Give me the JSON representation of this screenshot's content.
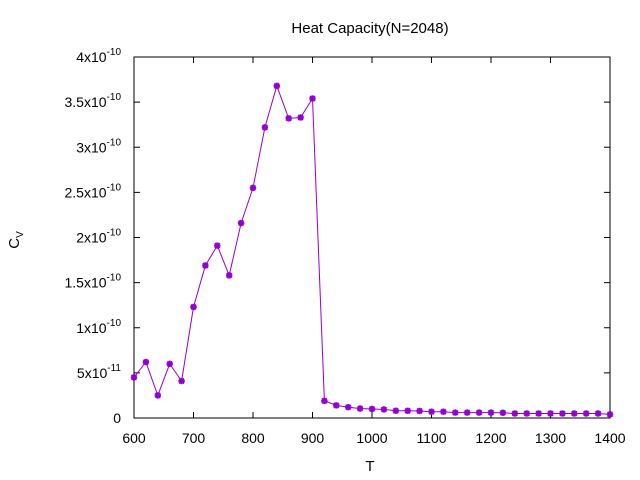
{
  "chart_data": {
    "type": "line",
    "title": "Heat Capacity(N=2048)",
    "xlabel": "T",
    "ylabel": "C",
    "ylabel_sub": "V",
    "xlim": [
      600,
      1400
    ],
    "ylim": [
      0,
      4e-10
    ],
    "x_ticks": [
      600,
      700,
      800,
      900,
      1000,
      1100,
      1200,
      1300,
      1400
    ],
    "x_tick_labels": [
      "600",
      "700",
      "800",
      "900",
      "1000",
      "1100",
      "1200",
      "1300",
      "1400"
    ],
    "y_ticks": [
      {
        "value": 0,
        "mantissa": "0",
        "exp": ""
      },
      {
        "value": 5e-11,
        "mantissa": "5x10",
        "exp": "-11"
      },
      {
        "value": 1e-10,
        "mantissa": "1x10",
        "exp": "-10"
      },
      {
        "value": 1.5e-10,
        "mantissa": "1.5x10",
        "exp": "-10"
      },
      {
        "value": 2e-10,
        "mantissa": "2x10",
        "exp": "-10"
      },
      {
        "value": 2.5e-10,
        "mantissa": "2.5x10",
        "exp": "-10"
      },
      {
        "value": 3e-10,
        "mantissa": "3x10",
        "exp": "-10"
      },
      {
        "value": 3.5e-10,
        "mantissa": "3.5x10",
        "exp": "-10"
      },
      {
        "value": 4e-10,
        "mantissa": "4x10",
        "exp": "-10"
      }
    ],
    "grid": false,
    "legend": "none",
    "series": [
      {
        "color": "#9400d3",
        "marker": "asterisk",
        "x": [
          600,
          620,
          640,
          660,
          680,
          700,
          720,
          740,
          760,
          780,
          800,
          820,
          840,
          860,
          880,
          900,
          920,
          940,
          960,
          980,
          1000,
          1020,
          1040,
          1060,
          1080,
          1100,
          1120,
          1140,
          1160,
          1180,
          1200,
          1220,
          1240,
          1260,
          1280,
          1300,
          1320,
          1340,
          1360,
          1380,
          1400
        ],
        "y": [
          4.5e-11,
          6.2e-11,
          2.5e-11,
          6e-11,
          4.1e-11,
          1.23e-10,
          1.69e-10,
          1.91e-10,
          1.58e-10,
          2.16e-10,
          2.55e-10,
          3.22e-10,
          3.68e-10,
          3.32e-10,
          3.33e-10,
          3.54e-10,
          1.9e-11,
          1.4e-11,
          1.2e-11,
          1.05e-11,
          1e-11,
          9.5e-12,
          8e-12,
          8e-12,
          7.8e-12,
          7e-12,
          7e-12,
          6e-12,
          6e-12,
          6e-12,
          6e-12,
          5.8e-12,
          5e-12,
          5e-12,
          5e-12,
          5e-12,
          5e-12,
          5e-12,
          5e-12,
          5e-12,
          4e-12
        ]
      }
    ]
  }
}
